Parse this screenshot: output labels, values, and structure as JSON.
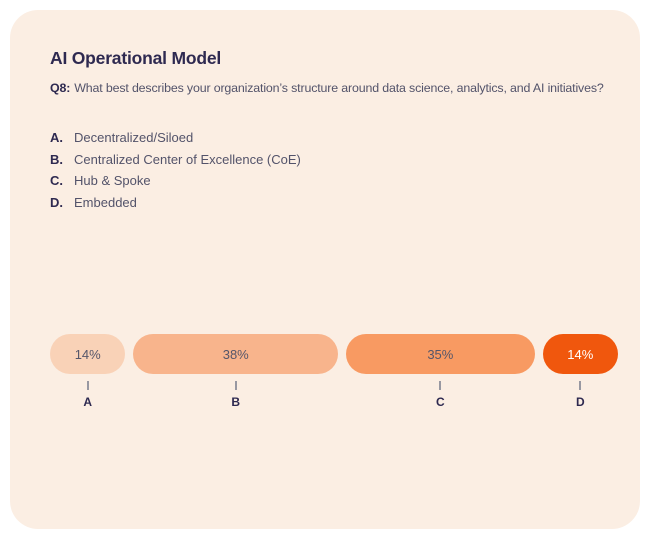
{
  "card": {
    "title": "AI Operational Model",
    "question_prefix": "Q8:",
    "question": "What best describes your organization’s structure around data science, analytics, and AI initiatives?",
    "options": [
      {
        "letter": "A.",
        "label": "Decentralized/Siloed"
      },
      {
        "letter": "B.",
        "label": "Centralized Center of Excellence (CoE)"
      },
      {
        "letter": "C.",
        "label": "Hub & Spoke"
      },
      {
        "letter": "D.",
        "label": "Embedded"
      }
    ]
  },
  "chart_data": {
    "type": "bar",
    "subtype": "proportional-horizontal-pills",
    "title": "AI Operational Model",
    "categories": [
      "A",
      "B",
      "C",
      "D"
    ],
    "values": [
      14,
      38,
      35,
      14
    ],
    "labels": [
      "14%",
      "38%",
      "35%",
      "14%"
    ],
    "colors": [
      "#f9d2b7",
      "#f8b48c",
      "#f89a62",
      "#f0570d"
    ],
    "label_colors": [
      "#55566a",
      "#55566a",
      "#55566a",
      "#ffffff"
    ],
    "xlabel": "",
    "ylabel": "",
    "legend": "none",
    "grid": false
  },
  "theme": {
    "card_background": "#fbeee3",
    "page_background": "#ffffff",
    "heading_color": "#2e2950",
    "body_text_color": "#53536a",
    "tick_color": "#9898a2"
  }
}
